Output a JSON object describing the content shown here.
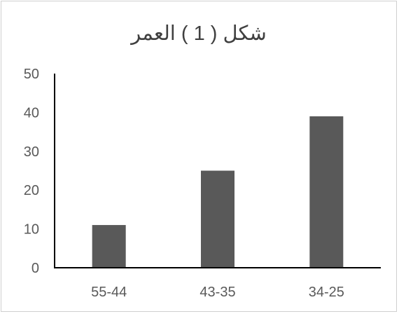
{
  "chart_data": {
    "type": "bar",
    "title": "شكل ( 1 ) العمر",
    "xlabel": "",
    "ylabel": "",
    "categories": [
      "55-44",
      "43-35",
      "34-25"
    ],
    "values": [
      11,
      25,
      39
    ],
    "ylim": [
      0,
      50
    ],
    "yticks": [
      0,
      10,
      20,
      30,
      40,
      50
    ],
    "grid": false,
    "bar_color": "#595959",
    "axis_color": "#000000"
  }
}
